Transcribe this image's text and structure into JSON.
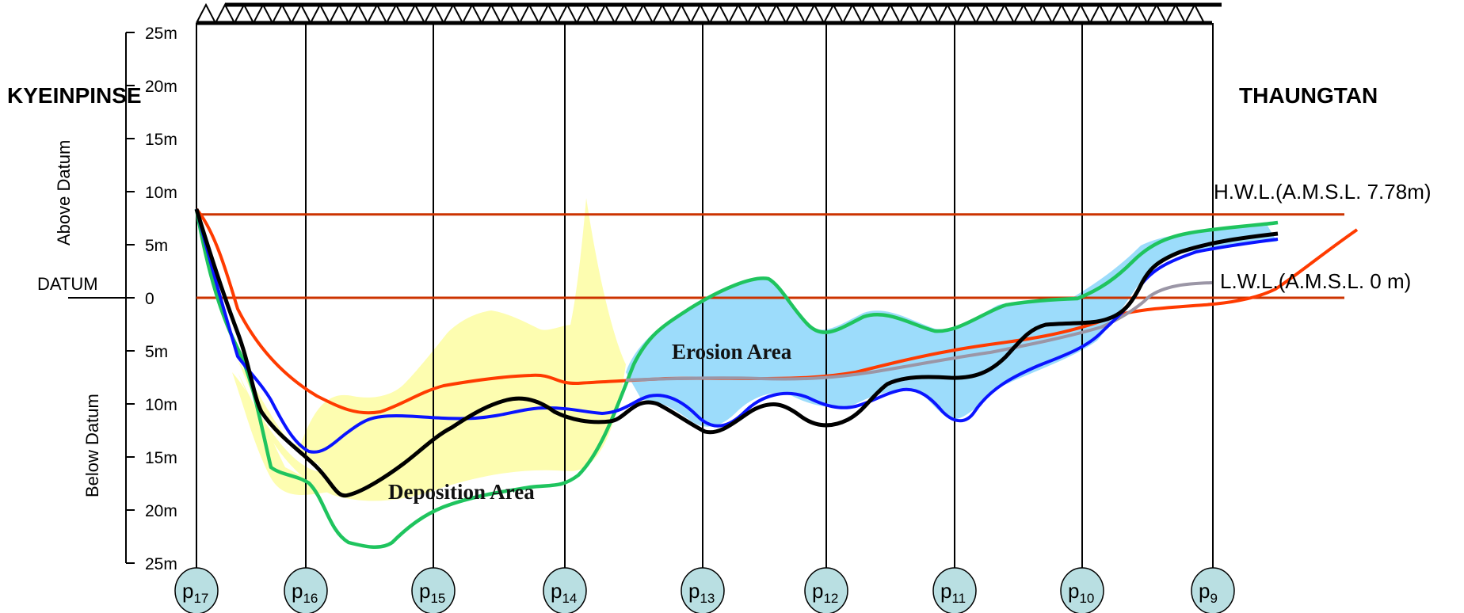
{
  "titles": {
    "left_bank": "KYEINPINSE",
    "right_bank": "THAUNGTAN"
  },
  "axis": {
    "above_label": "Above  Datum",
    "below_label": "Below  Datum",
    "datum_label": "DATUM",
    "ticks": [
      {
        "label": "25m",
        "value": 25
      },
      {
        "label": "20m",
        "value": 20
      },
      {
        "label": "15m",
        "value": 15
      },
      {
        "label": "10m",
        "value": 10
      },
      {
        "label": "5m",
        "value": 5
      },
      {
        "label": "0",
        "value": 0
      },
      {
        "label": "5m",
        "value": -5
      },
      {
        "label": "10m",
        "value": -10
      },
      {
        "label": "15m",
        "value": -15
      },
      {
        "label": "20m",
        "value": -20
      },
      {
        "label": "25m",
        "value": -25
      }
    ]
  },
  "water_levels": {
    "hwl_label": "H.W.L.(A.M.S.L. 7.78m)",
    "hwl_value": 7.78,
    "lwl_label": "L.W.L.(A.M.S.L. 0 m)",
    "lwl_value": 0
  },
  "areas": {
    "erosion_label": "Erosion Area",
    "deposition_label": "Deposition Area"
  },
  "piers": [
    {
      "base": "p",
      "sub": "17"
    },
    {
      "base": "p",
      "sub": "16"
    },
    {
      "base": "p",
      "sub": "15"
    },
    {
      "base": "p",
      "sub": "14"
    },
    {
      "base": "p",
      "sub": "13"
    },
    {
      "base": "p",
      "sub": "12"
    },
    {
      "base": "p",
      "sub": "11"
    },
    {
      "base": "p",
      "sub": "10"
    },
    {
      "base": "p",
      "sub": "9"
    }
  ],
  "colors": {
    "red_profile": "#ff3b00",
    "blue_profile": "#0a14ff",
    "black_profile": "#000000",
    "green_profile": "#1fc45e",
    "gray_profile": "#9b96a6",
    "water_level_line": "#cc3300",
    "erosion_fill": "#9cdcfb",
    "deposition_fill": "#fdfdb0",
    "pier_fill": "#b9dfe2"
  }
}
